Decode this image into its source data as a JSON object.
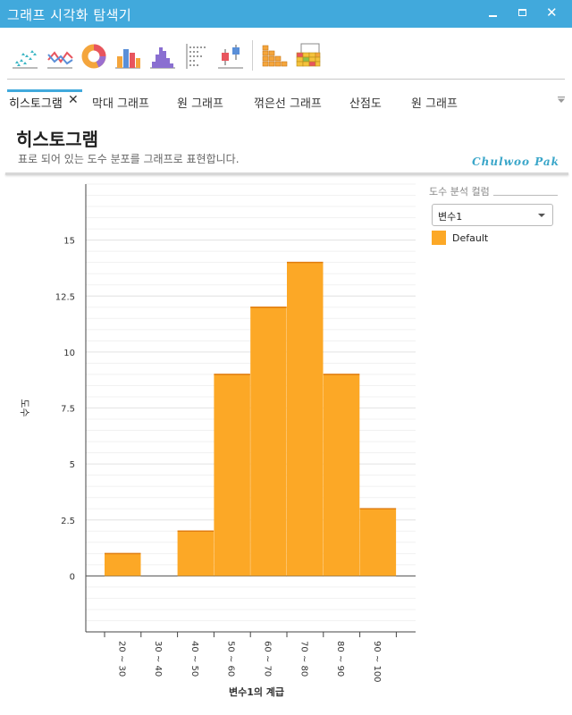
{
  "window": {
    "title": "그래프 시각화 탐색기",
    "buttons": [
      "minimize",
      "maximize",
      "close"
    ]
  },
  "toolbar": {
    "icons": [
      "scatter-chart-icon",
      "line-chart-icon",
      "donut-chart-icon",
      "bar-chart-icon",
      "histogram-icon",
      "dot-plot-icon",
      "box-plot-icon",
      "stacked-blocks-icon",
      "treemap-icon"
    ]
  },
  "tabs": {
    "items": [
      {
        "label": "히스토그램",
        "active": true
      },
      {
        "label": "막대 그래프",
        "active": false
      },
      {
        "label": "원 그래프",
        "active": false
      },
      {
        "label": "꺾은선 그래프",
        "active": false
      },
      {
        "label": "산점도",
        "active": false
      },
      {
        "label": "원 그래프",
        "active": false
      }
    ],
    "close_glyph": "✕"
  },
  "header": {
    "title": "히스토그램",
    "subtitle": "표로 되어 있는 도수 분포를 그래프로 표현합니다.",
    "brand": "Chulwoo Pak"
  },
  "panel": {
    "label": "도수 분석 컬럼",
    "selected": "변수1",
    "legend_label": "Default",
    "accent": "#fca826"
  },
  "chart_data": {
    "type": "bar",
    "categories": [
      "20 ~ 30",
      "30 ~ 40",
      "40 ~ 50",
      "50 ~ 60",
      "60 ~ 70",
      "70 ~ 80",
      "80 ~ 90",
      "90 ~ 100"
    ],
    "values": [
      1,
      0,
      2,
      9,
      12,
      14,
      9,
      3
    ],
    "xlabel": "변수1의 계급",
    "ylabel": "도수",
    "ylim": [
      -2.5,
      17.5
    ],
    "yticks": [
      0,
      2.5,
      5,
      7.5,
      10,
      12.5,
      15
    ],
    "ytick_labels": [
      "0",
      "2.5",
      "5",
      "7.5",
      "10",
      "12.5",
      "15"
    ],
    "bar_color": "#fca826",
    "bar_edge": "#e07d10",
    "grid": true
  }
}
